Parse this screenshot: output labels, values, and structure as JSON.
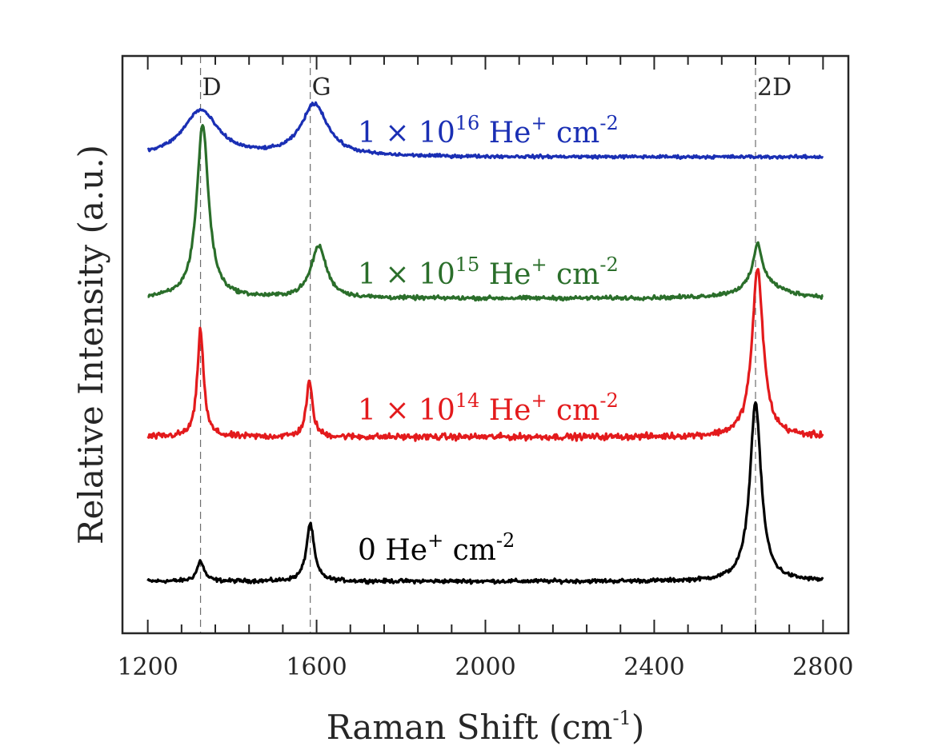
{
  "chart_data": {
    "type": "line",
    "xlabel": "Raman Shift (cm",
    "xlabel_sup": "-1",
    "xlabel_end": ")",
    "ylabel": "Relative Intensity (a.u.)",
    "xlim": [
      1140,
      2860
    ],
    "ylim": [
      0,
      10
    ],
    "xticks": [
      1200,
      1600,
      2000,
      2400,
      2800
    ],
    "xtick_labels": [
      "1200",
      "1600",
      "2000",
      "2400",
      "2800"
    ],
    "minor_step": 80,
    "grid": false,
    "peak_markers": [
      {
        "label": "D",
        "x": 1325
      },
      {
        "label": "G",
        "x": 1585
      },
      {
        "label": "2D",
        "x": 2640
      }
    ],
    "series": [
      {
        "name": "0 He+ cm-2",
        "label_parts": [
          "0",
          " He",
          "+",
          " cm",
          "-2"
        ],
        "color": "#000000",
        "baseline": 0.9,
        "noise": 0.05,
        "peaks": [
          {
            "x": 1325,
            "height": 0.35,
            "width": 10
          },
          {
            "x": 1585,
            "height": 1.0,
            "width": 11
          },
          {
            "x": 2640,
            "height": 3.1,
            "width": 16
          }
        ]
      },
      {
        "name": "1 × 10^14 He+ cm-2",
        "label_parts": [
          "1 × 10",
          "14",
          " He",
          "+",
          " cm",
          "-2"
        ],
        "color": "#e31a1c",
        "baseline": 3.4,
        "noise": 0.08,
        "peaks": [
          {
            "x": 1325,
            "height": 1.85,
            "width": 9
          },
          {
            "x": 1583,
            "height": 0.95,
            "width": 9
          },
          {
            "x": 2645,
            "height": 2.9,
            "width": 16
          }
        ]
      },
      {
        "name": "1 × 10^15 He+ cm-2",
        "label_parts": [
          "1 × 10",
          "15",
          " He",
          "+",
          " cm",
          "-2"
        ],
        "color": "#2a6e2a",
        "baseline": 5.8,
        "noise": 0.05,
        "peaks": [
          {
            "x": 1330,
            "height": 3.0,
            "width": 17
          },
          {
            "x": 1605,
            "height": 0.9,
            "width": 22
          },
          {
            "x": 2645,
            "height": 0.7,
            "width": 13
          },
          {
            "x": 2655,
            "height": 0.25,
            "width": 55
          }
        ]
      },
      {
        "name": "1 × 10^16 He+ cm-2",
        "label_parts": [
          "1 × 10",
          "16",
          " He",
          "+",
          " cm",
          "-2"
        ],
        "color": "#1a2fb4",
        "baseline": 8.25,
        "noise": 0.04,
        "peaks": [
          {
            "x": 1325,
            "height": 0.8,
            "width": 50
          },
          {
            "x": 1595,
            "height": 0.9,
            "width": 38
          }
        ]
      }
    ]
  }
}
